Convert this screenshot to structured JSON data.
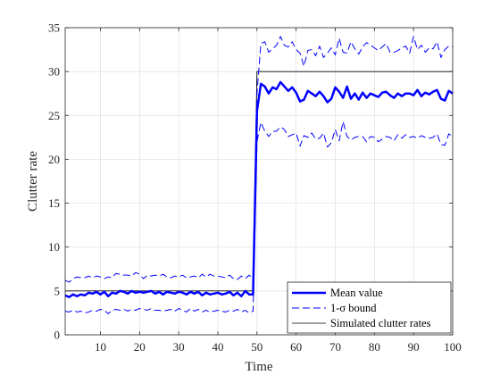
{
  "chart_data": {
    "type": "line",
    "xlabel": "Time",
    "ylabel": "Clutter rate",
    "xlim": [
      1,
      100
    ],
    "ylim": [
      0,
      35
    ],
    "xticks": [
      10,
      20,
      30,
      40,
      50,
      60,
      70,
      80,
      90,
      100
    ],
    "yticks": [
      0,
      5,
      10,
      15,
      20,
      25,
      30,
      35
    ],
    "grid": true,
    "legend_position": "bottom-right",
    "series": [
      {
        "name": "Mean value",
        "color": "#0000ff",
        "style": "solid-thick",
        "x": [
          1,
          2,
          3,
          4,
          5,
          6,
          7,
          8,
          9,
          10,
          11,
          12,
          13,
          14,
          15,
          16,
          17,
          18,
          19,
          20,
          21,
          22,
          23,
          24,
          25,
          26,
          27,
          28,
          29,
          30,
          31,
          32,
          33,
          34,
          35,
          36,
          37,
          38,
          39,
          40,
          41,
          42,
          43,
          44,
          45,
          46,
          47,
          48,
          49,
          50,
          51,
          52,
          53,
          54,
          55,
          56,
          57,
          58,
          59,
          60,
          61,
          62,
          63,
          64,
          65,
          66,
          67,
          68,
          69,
          70,
          71,
          72,
          73,
          74,
          75,
          76,
          77,
          78,
          79,
          80,
          81,
          82,
          83,
          84,
          85,
          86,
          87,
          88,
          89,
          90,
          91,
          92,
          93,
          94,
          95,
          96,
          97,
          98,
          99,
          100
        ],
        "values": [
          4.5,
          4.3,
          4.6,
          4.4,
          4.6,
          4.5,
          4.8,
          4.7,
          4.9,
          4.6,
          4.9,
          4.4,
          4.8,
          4.7,
          5.0,
          4.9,
          4.7,
          5.0,
          4.8,
          4.9,
          4.8,
          4.9,
          5.0,
          4.7,
          4.9,
          4.6,
          4.9,
          4.8,
          4.7,
          4.9,
          4.8,
          4.6,
          4.9,
          4.7,
          4.9,
          4.5,
          4.8,
          4.6,
          4.7,
          4.8,
          4.6,
          4.7,
          4.9,
          4.5,
          4.8,
          4.4,
          5.0,
          4.6,
          4.6,
          25.5,
          28.6,
          28.3,
          27.5,
          28.2,
          28.0,
          28.8,
          28.3,
          27.8,
          28.2,
          27.6,
          26.6,
          26.8,
          27.8,
          27.5,
          27.2,
          27.7,
          27.2,
          26.5,
          26.9,
          28.2,
          27.7,
          27.0,
          28.3,
          26.9,
          27.5,
          26.8,
          27.6,
          27.0,
          27.5,
          27.3,
          27.1,
          27.6,
          27.7,
          27.3,
          27.0,
          27.5,
          27.2,
          27.5,
          27.5,
          27.3,
          27.9,
          27.2,
          27.6,
          27.4,
          27.7,
          27.9,
          26.9,
          26.7,
          27.8,
          27.5
        ]
      },
      {
        "name": "1-σ bound",
        "color": "#0000ff",
        "style": "dashed",
        "x": [
          1,
          2,
          3,
          4,
          5,
          6,
          7,
          8,
          9,
          10,
          11,
          12,
          13,
          14,
          15,
          16,
          17,
          18,
          19,
          20,
          21,
          22,
          23,
          24,
          25,
          26,
          27,
          28,
          29,
          30,
          31,
          32,
          33,
          34,
          35,
          36,
          37,
          38,
          39,
          40,
          41,
          42,
          43,
          44,
          45,
          46,
          47,
          48,
          49,
          50,
          51,
          52,
          53,
          54,
          55,
          56,
          57,
          58,
          59,
          60,
          61,
          62,
          63,
          64,
          65,
          66,
          67,
          68,
          69,
          70,
          71,
          72,
          73,
          74,
          75,
          76,
          77,
          78,
          79,
          80,
          81,
          82,
          83,
          84,
          85,
          86,
          87,
          88,
          89,
          90,
          91,
          92,
          93,
          94,
          95,
          96,
          97,
          98,
          99,
          100
        ],
        "values": [
          6.2,
          6.0,
          6.4,
          6.6,
          6.5,
          6.5,
          6.7,
          6.5,
          6.7,
          6.6,
          6.4,
          6.6,
          6.5,
          7.0,
          6.9,
          6.8,
          6.8,
          6.7,
          7.1,
          6.9,
          6.4,
          6.8,
          6.7,
          6.8,
          6.7,
          6.9,
          6.6,
          6.5,
          6.7,
          6.6,
          6.8,
          6.5,
          6.6,
          6.7,
          6.5,
          6.9,
          6.6,
          6.9,
          6.7,
          6.7,
          6.6,
          6.5,
          6.8,
          6.4,
          6.3,
          6.7,
          6.4,
          6.8,
          6.4,
          27.5,
          33.2,
          33.4,
          32.2,
          32.6,
          33.0,
          34.0,
          33.0,
          32.8,
          33.4,
          32.5,
          32.1,
          30.6,
          32.4,
          32.5,
          31.8,
          32.9,
          31.6,
          32.1,
          32.7,
          31.9,
          33.8,
          32.2,
          32.1,
          33.4,
          32.6,
          32.0,
          32.8,
          33.3,
          33.0,
          32.7,
          32.4,
          32.8,
          33.2,
          32.2,
          32.2,
          32.4,
          32.7,
          32.9,
          32.1,
          34.0,
          32.5,
          33.0,
          32.2,
          32.7,
          32.6,
          33.4,
          31.6,
          32.5,
          32.9,
          32.8
        ]
      },
      {
        "name": "",
        "color": "#0000ff",
        "style": "dashed",
        "x": [
          1,
          2,
          3,
          4,
          5,
          6,
          7,
          8,
          9,
          10,
          11,
          12,
          13,
          14,
          15,
          16,
          17,
          18,
          19,
          20,
          21,
          22,
          23,
          24,
          25,
          26,
          27,
          28,
          29,
          30,
          31,
          32,
          33,
          34,
          35,
          36,
          37,
          38,
          39,
          40,
          41,
          42,
          43,
          44,
          45,
          46,
          47,
          48,
          49,
          50,
          51,
          52,
          53,
          54,
          55,
          56,
          57,
          58,
          59,
          60,
          61,
          62,
          63,
          64,
          65,
          66,
          67,
          68,
          69,
          70,
          71,
          72,
          73,
          74,
          75,
          76,
          77,
          78,
          79,
          80,
          81,
          82,
          83,
          84,
          85,
          86,
          87,
          88,
          89,
          90,
          91,
          92,
          93,
          94,
          95,
          96,
          97,
          98,
          99,
          100
        ],
        "values": [
          2.7,
          2.6,
          2.8,
          2.6,
          2.7,
          2.5,
          2.6,
          2.8,
          2.7,
          2.9,
          2.8,
          2.4,
          2.8,
          2.9,
          2.8,
          2.9,
          2.7,
          2.9,
          2.8,
          3.0,
          2.9,
          2.8,
          3.0,
          2.8,
          2.8,
          2.7,
          2.8,
          2.9,
          2.7,
          3.0,
          2.8,
          2.6,
          3.0,
          2.7,
          2.9,
          2.6,
          2.8,
          2.6,
          2.7,
          2.8,
          2.7,
          2.6,
          2.8,
          2.7,
          2.9,
          2.6,
          2.8,
          2.5,
          2.7,
          22.0,
          24.2,
          23.2,
          22.6,
          23.2,
          23.2,
          23.7,
          23.4,
          22.6,
          22.8,
          23.0,
          21.5,
          22.7,
          22.5,
          23.0,
          22.3,
          22.4,
          23.0,
          21.4,
          21.9,
          23.4,
          22.1,
          24.3,
          22.6,
          22.2,
          22.5,
          22.6,
          22.6,
          22.0,
          22.6,
          22.5,
          22.0,
          22.3,
          22.6,
          22.5,
          22.1,
          22.8,
          22.4,
          22.8,
          22.5,
          22.6,
          22.4,
          22.7,
          22.5,
          22.4,
          22.5,
          22.9,
          21.7,
          21.6,
          22.9,
          22.6
        ]
      },
      {
        "name": "Simulated clutter rates",
        "color": "#000000",
        "style": "solid-thin",
        "x": [
          1,
          49,
          50,
          100
        ],
        "values": [
          5,
          5,
          30,
          30
        ]
      }
    ]
  }
}
